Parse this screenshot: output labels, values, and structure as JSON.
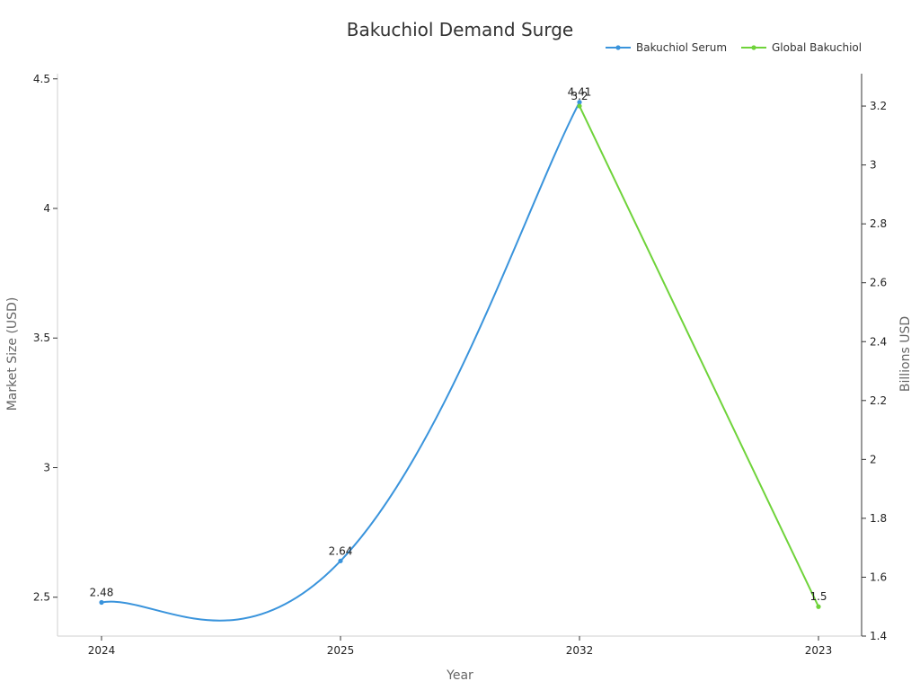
{
  "chart_data": {
    "type": "line",
    "title": "Bakuchiol Demand Surge",
    "xlabel": "Year",
    "ylabel_left": "Market Size (USD)",
    "ylabel_right": "Billions USD",
    "categories": [
      "2024",
      "2025",
      "2032",
      "2023"
    ],
    "y_left": {
      "range": [
        2.35,
        4.52
      ],
      "ticks": [
        "2.5",
        "3",
        "3.5",
        "4",
        "4.5"
      ]
    },
    "y_right": {
      "range": [
        1.4,
        3.31
      ],
      "ticks": [
        "1.4",
        "1.6",
        "1.8",
        "2",
        "2.2",
        "2.4",
        "2.6",
        "2.8",
        "3",
        "3.2"
      ]
    },
    "legend_position": "top-right",
    "grid": false,
    "series": [
      {
        "name": "Bakuchiol Serum",
        "axis": "left",
        "color": "#3a94dc",
        "smooth": true,
        "points": [
          {
            "category": "2024",
            "value": 2.48,
            "label": "2.48"
          },
          {
            "category": "2025",
            "value": 2.64,
            "label": "2.64"
          },
          {
            "category": "2032",
            "value": 4.41,
            "label": "4.41"
          }
        ]
      },
      {
        "name": "Global Bakuchiol",
        "axis": "right",
        "color": "#6fd33a",
        "smooth": false,
        "points": [
          {
            "category": "2032",
            "value": 3.2,
            "label": "3.2"
          },
          {
            "category": "2023",
            "value": 1.5,
            "label": "1.5"
          }
        ]
      }
    ]
  }
}
